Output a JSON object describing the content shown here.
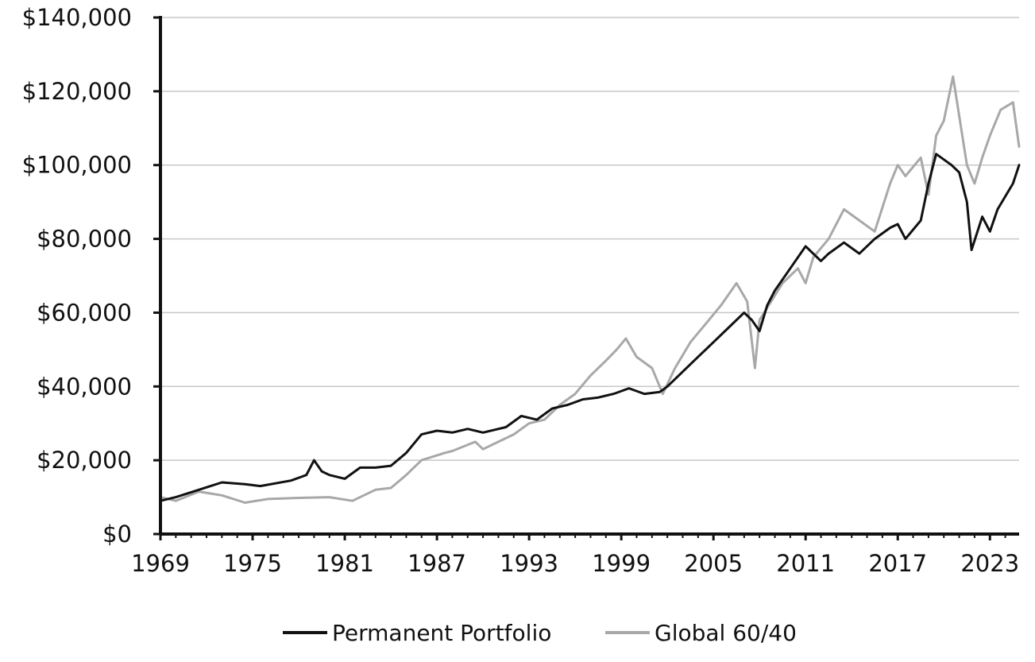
{
  "chart_data": {
    "type": "line",
    "title": "",
    "xlabel": "",
    "ylabel": "",
    "xlim": [
      1969,
      2024.9
    ],
    "ylim": [
      0,
      140000
    ],
    "grid": true,
    "legend_position": "bottom",
    "x_ticks": [
      1969,
      1975,
      1981,
      1987,
      1993,
      1999,
      2005,
      2011,
      2017,
      2023
    ],
    "x_tick_labels": [
      "1969",
      "1975",
      "1981",
      "1987",
      "1993",
      "1999",
      "2005",
      "2011",
      "2017",
      "2023"
    ],
    "y_ticks": [
      0,
      20000,
      40000,
      60000,
      80000,
      100000,
      120000,
      140000
    ],
    "y_tick_labels": [
      "$0",
      "$20,000",
      "$40,000",
      "$60,000",
      "$80,000",
      "$100,000",
      "$120,000",
      "$140,000"
    ],
    "series": [
      {
        "name": "Global 60/40",
        "color": "#a8a8a8",
        "x": [
          1969.0,
          1970.0,
          1971.5,
          1973.0,
          1974.5,
          1976.0,
          1978.0,
          1980.0,
          1981.5,
          1983.0,
          1984.0,
          1985.0,
          1986.0,
          1987.5,
          1988.0,
          1989.5,
          1990.0,
          1991.0,
          1992.0,
          1993.0,
          1994.0,
          1995.0,
          1996.0,
          1997.0,
          1998.0,
          1998.7,
          1999.3,
          2000.0,
          2001.0,
          2001.7,
          2002.5,
          2003.5,
          2004.5,
          2005.5,
          2006.5,
          2007.2,
          2007.7,
          2008.0,
          2008.6,
          2009.5,
          2010.5,
          2011.0,
          2011.5,
          2012.5,
          2013.5,
          2014.5,
          2015.5,
          2016.5,
          2017.0,
          2017.5,
          2018.5,
          2019.0,
          2019.5,
          2020.0,
          2020.6,
          2021.5,
          2022.0,
          2022.5,
          2023.0,
          2023.7,
          2024.5,
          2024.9
        ],
        "y": [
          10000,
          9000,
          11500,
          10500,
          8500,
          9500,
          9800,
          10000,
          9000,
          12000,
          12500,
          16000,
          20000,
          22000,
          22500,
          25000,
          23000,
          25000,
          27000,
          30000,
          31000,
          35000,
          38000,
          43000,
          47000,
          50000,
          53000,
          48000,
          45000,
          38000,
          45000,
          52000,
          57000,
          62000,
          68000,
          63000,
          45000,
          58000,
          62000,
          68000,
          72000,
          68000,
          75000,
          80000,
          88000,
          85000,
          82000,
          95000,
          100000,
          97000,
          102000,
          92000,
          108000,
          112000,
          124000,
          100000,
          95000,
          102000,
          108000,
          115000,
          117000,
          105000
        ]
      },
      {
        "name": "Permanent Portfolio",
        "color": "#111111",
        "x": [
          1969.0,
          1970.0,
          1971.5,
          1973.0,
          1974.5,
          1975.5,
          1977.5,
          1978.5,
          1979.0,
          1979.5,
          1980.0,
          1981.0,
          1982.0,
          1983.0,
          1984.0,
          1985.0,
          1986.0,
          1987.0,
          1988.0,
          1989.0,
          1990.0,
          1991.5,
          1992.5,
          1993.5,
          1994.5,
          1995.5,
          1996.5,
          1997.5,
          1998.5,
          1999.5,
          2000.5,
          2001.5,
          2002.0,
          2003.0,
          2004.0,
          2005.0,
          2006.0,
          2007.0,
          2007.5,
          2008.0,
          2008.5,
          2009.0,
          2010.0,
          2011.0,
          2012.0,
          2012.5,
          2013.5,
          2014.5,
          2015.5,
          2016.5,
          2017.0,
          2017.5,
          2018.5,
          2019.0,
          2019.5,
          2020.5,
          2021.0,
          2021.5,
          2021.8,
          2022.5,
          2023.0,
          2023.5,
          2024.5,
          2024.9
        ],
        "y": [
          9000,
          10000,
          12000,
          14000,
          13500,
          13000,
          14500,
          16000,
          20000,
          17000,
          16000,
          15000,
          18000,
          18000,
          18500,
          22000,
          27000,
          28000,
          27500,
          28500,
          27500,
          29000,
          32000,
          31000,
          34000,
          35000,
          36500,
          37000,
          38000,
          39500,
          38000,
          38500,
          40000,
          44000,
          48000,
          52000,
          56000,
          60000,
          58000,
          55000,
          62000,
          66000,
          72000,
          78000,
          74000,
          76000,
          79000,
          76000,
          80000,
          83000,
          84000,
          80000,
          85000,
          95000,
          103000,
          100000,
          98000,
          90000,
          77000,
          86000,
          82000,
          88000,
          95000,
          100000
        ]
      }
    ]
  }
}
